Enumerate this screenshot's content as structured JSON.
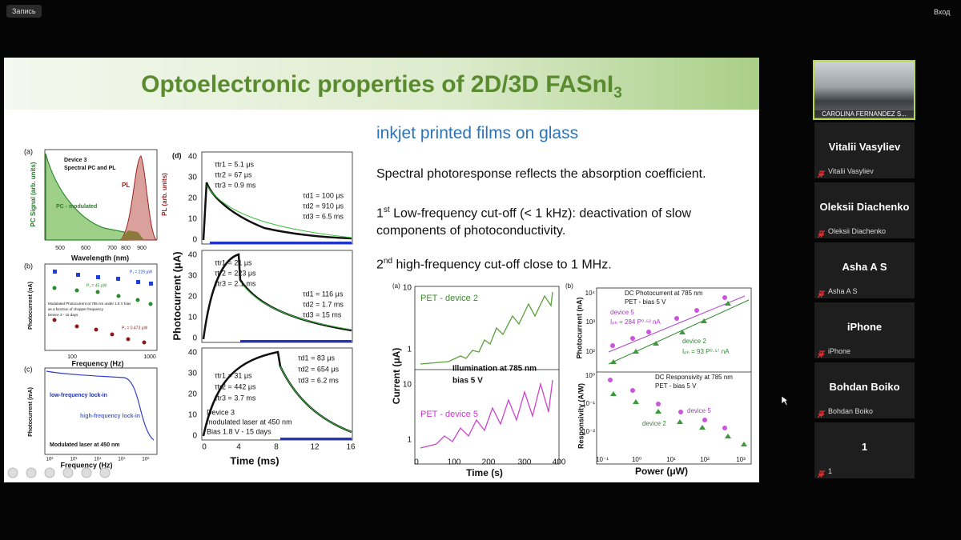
{
  "toolbar": {
    "record": "Запись",
    "login": "Вход"
  },
  "slide": {
    "title": "Optoelectronic properties of 2D/3D FASnI",
    "title_subscript": "3",
    "subtitle": "inkjet printed films on glass",
    "point_1": "Spectral photoresponse reflects the absorption coefficient.",
    "point_2": {
      "number": "1",
      "ordinal": "st",
      "line_1": "Low-frequency cut-off (< 1 kHz): deactivation of slow",
      "line_2": "components of photoconductivity."
    },
    "point_3": {
      "number": "2",
      "ordinal": "nd",
      "text": "high-frequency cut-off close to 1 MHz."
    }
  },
  "figures": {
    "left_a": {
      "label": "(a)",
      "note_1": "Device 3",
      "note_2": "Spectral PC and PL",
      "pl": "PL",
      "pc": "PC - modulated",
      "y_left": "PC Signal (arb. units)",
      "y_right": "PL (arb. units)",
      "xticks": [
        "500",
        "600",
        "700",
        "800",
        "900"
      ],
      "x_title": "Wavelength (nm)"
    },
    "left_b": {
      "label": "(b)",
      "y_title": "Photocurrent (nA)",
      "xticks": [
        "100",
        "1000"
      ],
      "x_title": "Frequency (Hz)",
      "p1": "P₁ = 229 μW",
      "p2": "P₁ = 45 μW",
      "p3": "P₁ = 0.473 μW",
      "note_1": "Modulated Photocurrent at 785 nm under 1.8 V bias",
      "note_2": "as a function of chopper frequency",
      "note_3": "Device 3 - 15 days"
    },
    "left_c": {
      "label": "(c)",
      "y_title": "Photocurrent (mA)",
      "low": "low-frequency lock-in",
      "high": "high-frequency lock-in",
      "note": "Modulated laser at 450 nm",
      "xticks": [
        "10²",
        "10³",
        "10⁴",
        "10⁵",
        "10⁶"
      ],
      "x_title": "Frequency (Hz)"
    },
    "d": {
      "label": "(d)",
      "y_title": "Photocurrent (μA)",
      "x_title": "Time (ms)",
      "xticks": [
        "0",
        "4",
        "8",
        "12",
        "16"
      ],
      "yticks": [
        "0",
        "10",
        "20",
        "30",
        "40"
      ],
      "panels": [
        {
          "rise": [
            "τtr1 = 5.1 μs",
            "τtr2 = 67 μs",
            "τtr3 = 0.9 ms"
          ],
          "decay": [
            "τd1 = 100 μs",
            "τd2 = 910 μs",
            "τd3 = 6.5 ms"
          ]
        },
        {
          "rise": [
            "τtr1 = 21 μs",
            "τtr2 = 223 μs",
            "τtr3 = 2.1 ms"
          ],
          "decay": [
            "τd1 = 116 μs",
            "τd2 = 1.7 ms",
            "τd3 = 15 ms"
          ]
        },
        {
          "rise": [
            "τtr1 = 31 μs",
            "τtr2 = 442 μs",
            "τtr3 = 3.7 ms"
          ],
          "decay": [
            "τd1 = 83 μs",
            "τd2 = 654 μs",
            "τd3 = 6.2 ms"
          ],
          "notes": [
            "Device 3",
            "modulated laser at 450 nm",
            "Bias 1.8 V - 15 days"
          ]
        }
      ]
    },
    "right_a": {
      "label": "(a)",
      "series_1": "PET - device 2",
      "series_2": "PET - device 5",
      "note_1": "Illumination at 785 nm",
      "note_2": "bias 5 V",
      "y_title": "Current (μA)",
      "yticks_top": [
        "10",
        "1"
      ],
      "yticks_bottom": [
        "10",
        "1"
      ],
      "xticks": [
        "0",
        "100",
        "200",
        "300",
        "400"
      ],
      "x_title": "Time (s)"
    },
    "right_b": {
      "label": "(b)",
      "top_note_1": "DC Photocurrent at 785 nm",
      "top_note_2": "PET - bias 5 V",
      "device5": "device 5",
      "fit5": "Iₚₕ = 284 P⁰·⁵² nA",
      "device2": "device 2",
      "fit2": "Iₚₕ = 93 P⁰·⁵⁷ nA",
      "y_top": "Photocurrent (nA)",
      "yticks_top": [
        "10⁴",
        "10³",
        "10²"
      ],
      "bottom_note_1": "DC Responsivity at 785 nm",
      "bottom_note_2": "PET - bias 5 V",
      "device5b": "device 5",
      "device2b": "device 2",
      "y_bottom": "Responsivity (A/W)",
      "yticks_bottom": [
        "10⁰",
        "10⁻¹",
        "10⁻²"
      ],
      "xticks": [
        "10⁻¹",
        "10⁰",
        "10¹",
        "10²",
        "10³"
      ],
      "x_title": "Power (μW)"
    }
  },
  "participants": {
    "video_label": "CAROLINA FERNANDEZ S...",
    "tiles": [
      {
        "name": "Vitalii Vasyliev",
        "label": "Vitalii Vasyliev"
      },
      {
        "name": "Oleksii Diachenko",
        "label": "Oleksii Diachenko"
      },
      {
        "name": "Asha A S",
        "label": "Asha A S"
      },
      {
        "name": "iPhone",
        "label": "iPhone"
      },
      {
        "name": "Bohdan Boiko",
        "label": "Bohdan Boiko"
      },
      {
        "name": "1",
        "label": "1"
      }
    ]
  }
}
